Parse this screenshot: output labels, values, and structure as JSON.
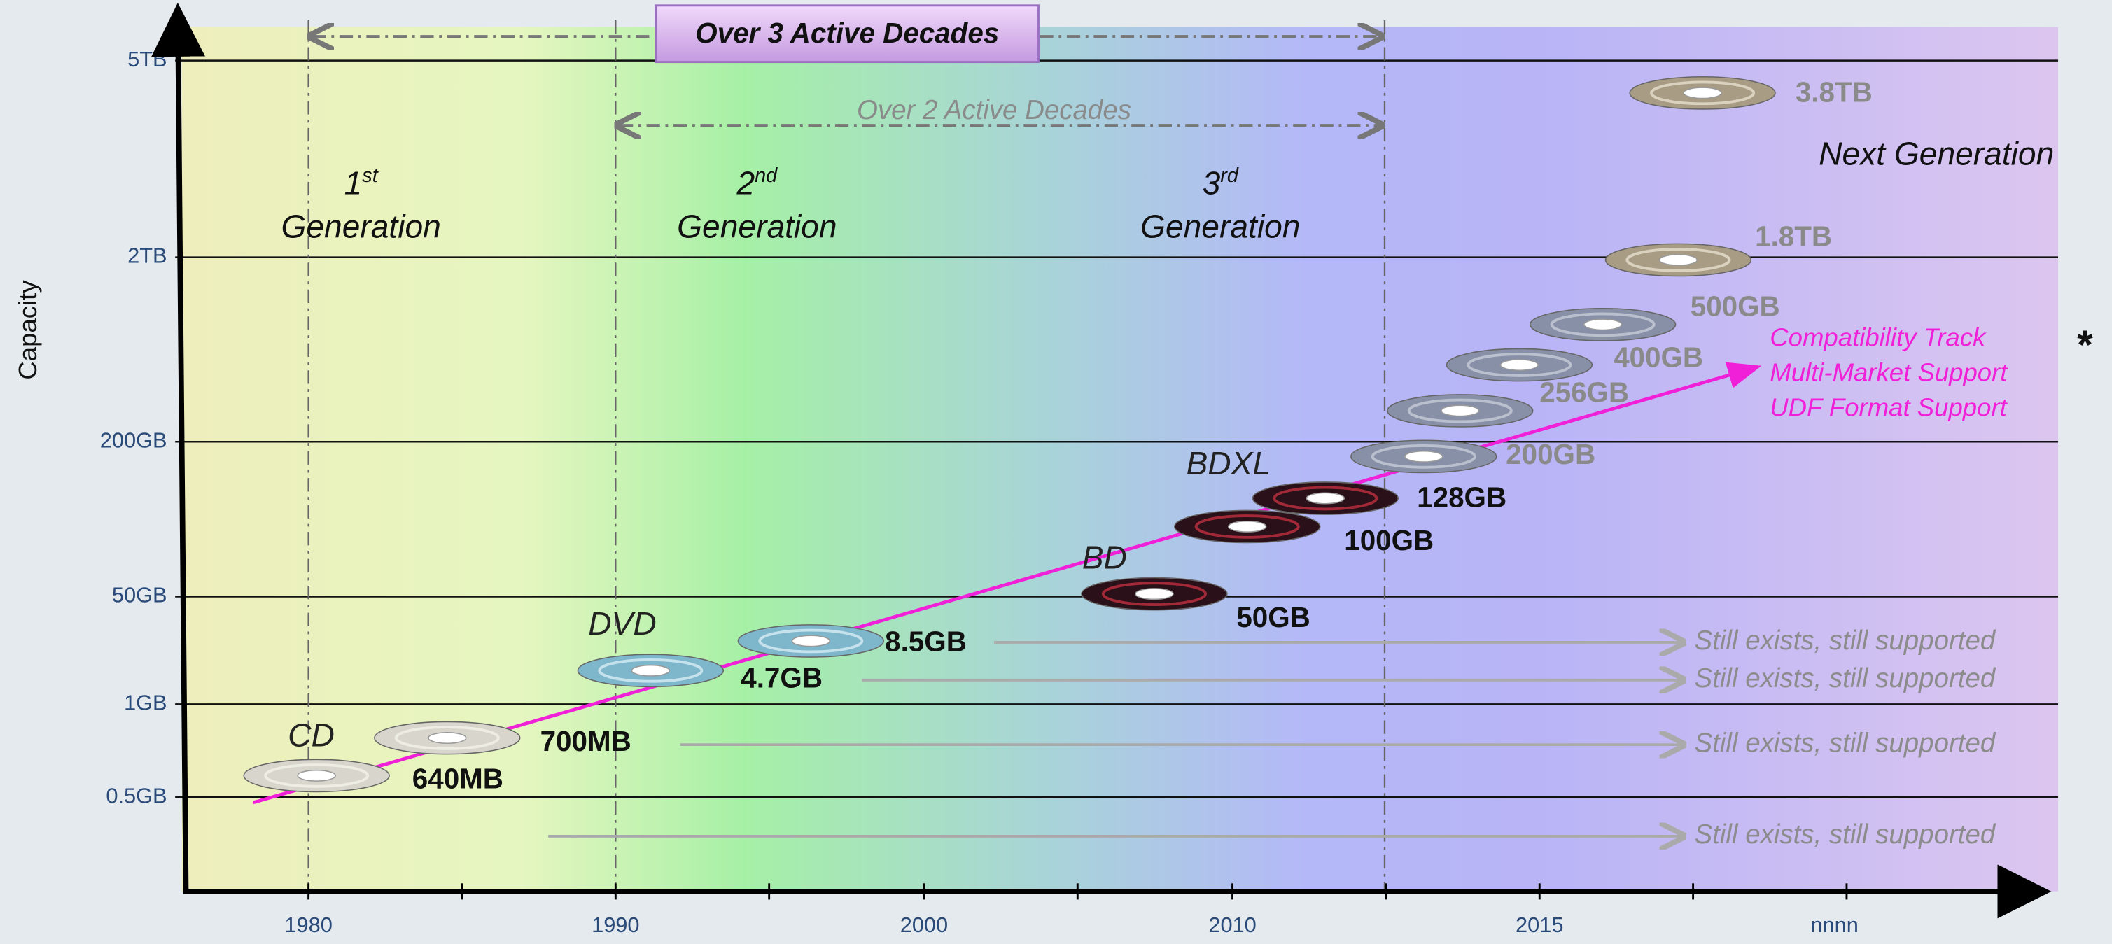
{
  "axis": {
    "y_label": "Capacity",
    "y_ticks": [
      "5TB",
      "2TB",
      "200GB",
      "50GB",
      "1GB",
      "0.5GB"
    ],
    "x_ticks": [
      "1980",
      "1990",
      "2000",
      "2010",
      "2015",
      "nnnn"
    ]
  },
  "spans": [
    "Over 3 Active Decades",
    "Over 2 Active Decades"
  ],
  "generations": [
    {
      "ordinal": "1",
      "suffix": "st",
      "label": "Generation"
    },
    {
      "ordinal": "2",
      "suffix": "nd",
      "label": "Generation"
    },
    {
      "ordinal": "3",
      "suffix": "rd",
      "label": "Generation"
    }
  ],
  "next_generation": "Next Generation",
  "formats": [
    "CD",
    "DVD",
    "BD",
    "BDXL"
  ],
  "discs": [
    "640MB",
    "700MB",
    "4.7GB",
    "8.5GB",
    "50GB",
    "100GB",
    "128GB",
    "200GB",
    "256GB",
    "400GB",
    "500GB",
    "1.8TB",
    "3.8TB"
  ],
  "track_notes": [
    "Compatibility Track",
    "Multi-Market Support",
    "UDF Format Support"
  ],
  "footnote_mark": "*",
  "still_supported": [
    "Still exists, still supported",
    "Still exists, still supported",
    "Still exists, still supported",
    "Still exists, still supported"
  ]
}
